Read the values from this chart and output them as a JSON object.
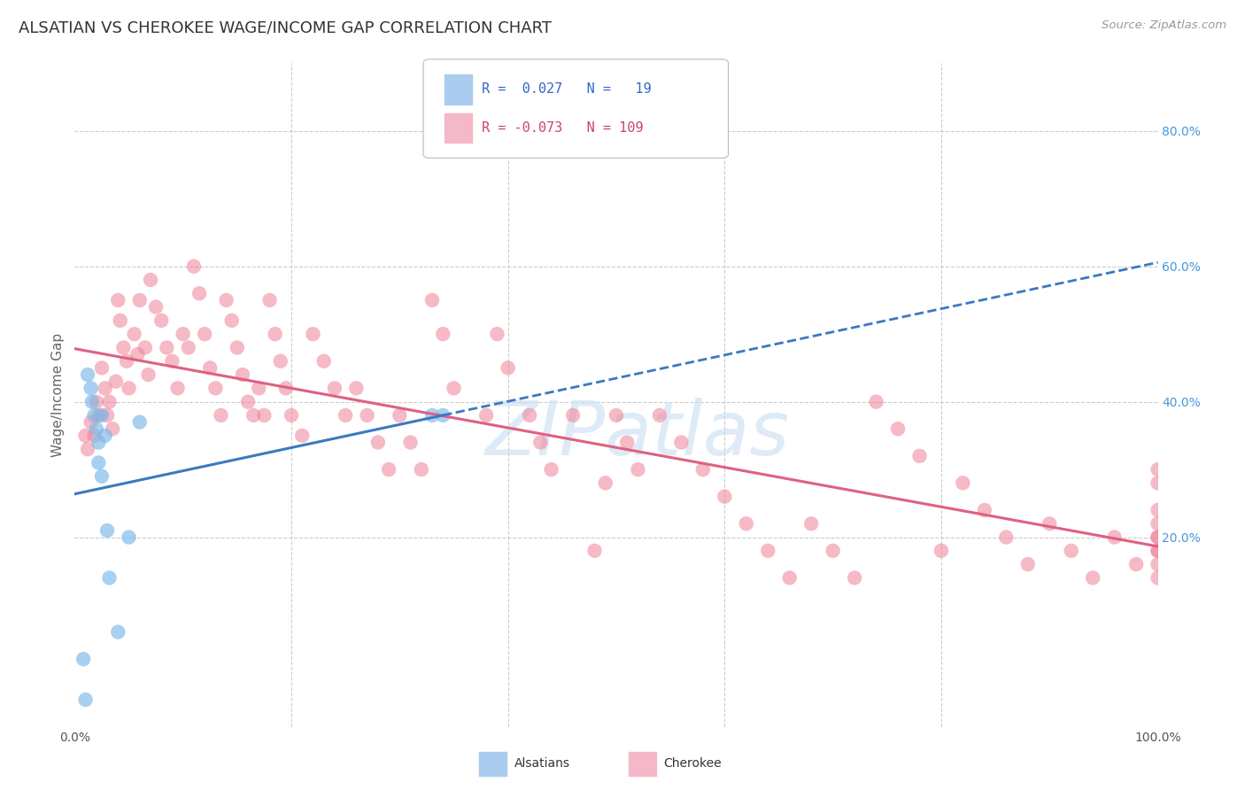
{
  "title": "ALSATIAN VS CHEROKEE WAGE/INCOME GAP CORRELATION CHART",
  "source": "Source: ZipAtlas.com",
  "ylabel": "Wage/Income Gap",
  "xlim": [
    0.0,
    1.0
  ],
  "ylim": [
    -0.08,
    0.9
  ],
  "alsatian_scatter_color": "#7ab8e8",
  "cherokee_scatter_color": "#f08098",
  "alsatian_line_color": "#3a7abf",
  "cherokee_line_color": "#e06080",
  "alsatian_legend_color": "#aaccee",
  "cherokee_legend_color": "#f4b8c8",
  "grid_color": "#cccccc",
  "watermark_color": "#c8dff0",
  "text_color": "#333333",
  "tick_color": "#4499dd",
  "source_color": "#999999",
  "alsatians_x": [
    0.008,
    0.01,
    0.012,
    0.015,
    0.016,
    0.018,
    0.02,
    0.022,
    0.022,
    0.025,
    0.025,
    0.028,
    0.03,
    0.032,
    0.04,
    0.05,
    0.06,
    0.33,
    0.34
  ],
  "alsatians_y": [
    0.02,
    -0.04,
    0.44,
    0.42,
    0.4,
    0.38,
    0.36,
    0.34,
    0.31,
    0.29,
    0.38,
    0.35,
    0.21,
    0.14,
    0.06,
    0.2,
    0.37,
    0.38,
    0.38
  ],
  "cherokee_x": [
    0.01,
    0.012,
    0.015,
    0.018,
    0.02,
    0.022,
    0.025,
    0.028,
    0.03,
    0.032,
    0.035,
    0.038,
    0.04,
    0.042,
    0.045,
    0.048,
    0.05,
    0.055,
    0.058,
    0.06,
    0.065,
    0.068,
    0.07,
    0.075,
    0.08,
    0.085,
    0.09,
    0.095,
    0.1,
    0.105,
    0.11,
    0.115,
    0.12,
    0.125,
    0.13,
    0.135,
    0.14,
    0.145,
    0.15,
    0.155,
    0.16,
    0.165,
    0.17,
    0.175,
    0.18,
    0.185,
    0.19,
    0.195,
    0.2,
    0.21,
    0.22,
    0.23,
    0.24,
    0.25,
    0.26,
    0.27,
    0.28,
    0.29,
    0.3,
    0.31,
    0.32,
    0.33,
    0.34,
    0.35,
    0.38,
    0.39,
    0.4,
    0.42,
    0.43,
    0.44,
    0.46,
    0.48,
    0.49,
    0.5,
    0.51,
    0.52,
    0.54,
    0.56,
    0.58,
    0.6,
    0.62,
    0.64,
    0.66,
    0.68,
    0.7,
    0.72,
    0.74,
    0.76,
    0.78,
    0.8,
    0.82,
    0.84,
    0.86,
    0.88,
    0.9,
    0.92,
    0.94,
    0.96,
    0.98,
    1.0,
    1.0,
    1.0,
    1.0,
    1.0,
    1.0,
    1.0,
    1.0,
    1.0,
    1.0
  ],
  "cherokee_y": [
    0.35,
    0.33,
    0.37,
    0.35,
    0.4,
    0.38,
    0.45,
    0.42,
    0.38,
    0.4,
    0.36,
    0.43,
    0.55,
    0.52,
    0.48,
    0.46,
    0.42,
    0.5,
    0.47,
    0.55,
    0.48,
    0.44,
    0.58,
    0.54,
    0.52,
    0.48,
    0.46,
    0.42,
    0.5,
    0.48,
    0.6,
    0.56,
    0.5,
    0.45,
    0.42,
    0.38,
    0.55,
    0.52,
    0.48,
    0.44,
    0.4,
    0.38,
    0.42,
    0.38,
    0.55,
    0.5,
    0.46,
    0.42,
    0.38,
    0.35,
    0.5,
    0.46,
    0.42,
    0.38,
    0.42,
    0.38,
    0.34,
    0.3,
    0.38,
    0.34,
    0.3,
    0.55,
    0.5,
    0.42,
    0.38,
    0.5,
    0.45,
    0.38,
    0.34,
    0.3,
    0.38,
    0.18,
    0.28,
    0.38,
    0.34,
    0.3,
    0.38,
    0.34,
    0.3,
    0.26,
    0.22,
    0.18,
    0.14,
    0.22,
    0.18,
    0.14,
    0.4,
    0.36,
    0.32,
    0.18,
    0.28,
    0.24,
    0.2,
    0.16,
    0.22,
    0.18,
    0.14,
    0.2,
    0.16,
    0.18,
    0.28,
    0.24,
    0.2,
    0.16,
    0.22,
    0.18,
    0.14,
    0.2,
    0.3
  ]
}
